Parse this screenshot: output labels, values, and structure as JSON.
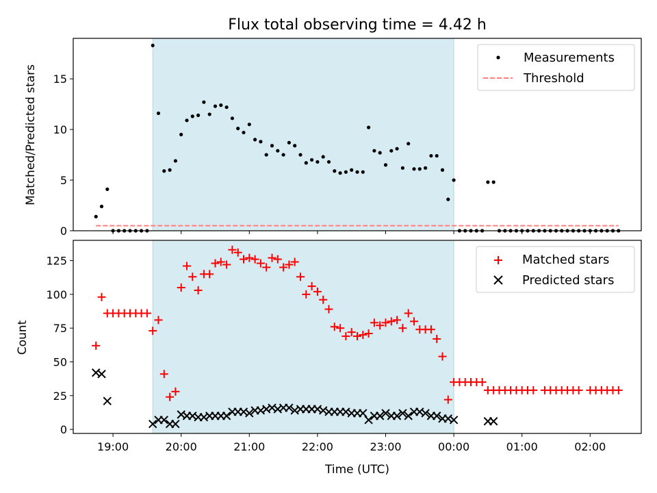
{
  "chart_data": [
    {
      "type": "scatter",
      "title": "Flux total observing time = 4.42 h",
      "xlabel": "",
      "ylabel": "Matched/Predicted stars",
      "xlim": [
        "18:25",
        "02:45"
      ],
      "ylim": [
        0,
        19
      ],
      "yticks": [
        0,
        5,
        10,
        15
      ],
      "grid": false,
      "legend_position": "top-right",
      "shaded_span": {
        "start": "19:35",
        "end": "00:00",
        "color": "#add8e6"
      },
      "series": [
        {
          "name": "Measurements",
          "color": "#000000",
          "marker": "dot",
          "points": [
            [
              "18:45",
              1.4
            ],
            [
              "18:50",
              2.4
            ],
            [
              "18:55",
              4.1
            ],
            [
              "19:00",
              0
            ],
            [
              "19:05",
              0
            ],
            [
              "19:10",
              0
            ],
            [
              "19:15",
              0
            ],
            [
              "19:20",
              0
            ],
            [
              "19:25",
              0
            ],
            [
              "19:30",
              0
            ],
            [
              "19:35",
              18.3
            ],
            [
              "19:40",
              11.6
            ],
            [
              "19:45",
              5.9
            ],
            [
              "19:50",
              6.0
            ],
            [
              "19:55",
              6.9
            ],
            [
              "20:00",
              9.5
            ],
            [
              "20:05",
              10.9
            ],
            [
              "20:10",
              11.3
            ],
            [
              "20:15",
              11.4
            ],
            [
              "20:20",
              12.7
            ],
            [
              "20:25",
              11.5
            ],
            [
              "20:30",
              12.3
            ],
            [
              "20:35",
              12.4
            ],
            [
              "20:40",
              12.2
            ],
            [
              "20:45",
              11.1
            ],
            [
              "20:50",
              10.1
            ],
            [
              "20:55",
              9.7
            ],
            [
              "21:00",
              10.5
            ],
            [
              "21:05",
              9.0
            ],
            [
              "21:10",
              8.8
            ],
            [
              "21:15",
              7.5
            ],
            [
              "21:20",
              8.4
            ],
            [
              "21:25",
              7.9
            ],
            [
              "21:30",
              7.5
            ],
            [
              "21:35",
              8.7
            ],
            [
              "21:40",
              8.4
            ],
            [
              "21:45",
              7.5
            ],
            [
              "21:50",
              6.7
            ],
            [
              "21:55",
              7.0
            ],
            [
              "22:00",
              6.8
            ],
            [
              "22:05",
              7.3
            ],
            [
              "22:10",
              6.8
            ],
            [
              "22:15",
              5.9
            ],
            [
              "22:20",
              5.7
            ],
            [
              "22:25",
              5.8
            ],
            [
              "22:30",
              6.0
            ],
            [
              "22:35",
              5.8
            ],
            [
              "22:40",
              5.8
            ],
            [
              "22:45",
              10.2
            ],
            [
              "22:50",
              7.9
            ],
            [
              "22:55",
              7.7
            ],
            [
              "23:00",
              6.5
            ],
            [
              "23:05",
              7.9
            ],
            [
              "23:10",
              8.1
            ],
            [
              "23:15",
              6.2
            ],
            [
              "23:20",
              8.6
            ],
            [
              "23:25",
              6.1
            ],
            [
              "23:30",
              6.1
            ],
            [
              "23:35",
              6.2
            ],
            [
              "23:40",
              7.4
            ],
            [
              "23:45",
              7.4
            ],
            [
              "23:50",
              6.0
            ],
            [
              "23:55",
              3.1
            ],
            [
              "00:00",
              5.0
            ],
            [
              "00:05",
              0
            ],
            [
              "00:10",
              0
            ],
            [
              "00:15",
              0
            ],
            [
              "00:20",
              0
            ],
            [
              "00:25",
              0
            ],
            [
              "00:30",
              4.8
            ],
            [
              "00:35",
              4.8
            ],
            [
              "00:40",
              0
            ],
            [
              "00:45",
              0
            ],
            [
              "00:50",
              0
            ],
            [
              "00:55",
              0
            ],
            [
              "01:00",
              0
            ],
            [
              "01:05",
              0
            ],
            [
              "01:10",
              0
            ],
            [
              "01:15",
              0
            ],
            [
              "01:20",
              0
            ],
            [
              "01:25",
              0
            ],
            [
              "01:30",
              0
            ],
            [
              "01:35",
              0
            ],
            [
              "01:40",
              0
            ],
            [
              "01:45",
              0
            ],
            [
              "01:50",
              0
            ],
            [
              "01:55",
              0
            ],
            [
              "02:00",
              0
            ],
            [
              "02:05",
              0
            ],
            [
              "02:10",
              0
            ],
            [
              "02:15",
              0
            ],
            [
              "02:20",
              0
            ],
            [
              "02:25",
              0
            ]
          ]
        },
        {
          "name": "Threshold",
          "color": "#ff7f7f",
          "style": "dashed",
          "points": [
            [
              "18:45",
              0.5
            ],
            [
              "02:25",
              0.5
            ]
          ]
        }
      ]
    },
    {
      "type": "scatter",
      "title": "",
      "xlabel": "Time (UTC)",
      "ylabel": "Count",
      "xlim": [
        "18:25",
        "02:45"
      ],
      "ylim": [
        -3,
        140
      ],
      "yticks": [
        0,
        25,
        50,
        75,
        100,
        125
      ],
      "xticks": [
        "19:00",
        "20:00",
        "21:00",
        "22:00",
        "23:00",
        "00:00",
        "01:00",
        "02:00"
      ],
      "grid": false,
      "legend_position": "top-right",
      "shaded_span": {
        "start": "19:35",
        "end": "00:00",
        "color": "#add8e6"
      },
      "series": [
        {
          "name": "Matched stars",
          "color": "#ff0000",
          "marker": "plus",
          "points": [
            [
              "18:45",
              62
            ],
            [
              "18:50",
              98
            ],
            [
              "18:55",
              86
            ],
            [
              "19:00",
              86
            ],
            [
              "19:05",
              86
            ],
            [
              "19:10",
              86
            ],
            [
              "19:15",
              86
            ],
            [
              "19:20",
              86
            ],
            [
              "19:25",
              86
            ],
            [
              "19:30",
              86
            ],
            [
              "19:35",
              73
            ],
            [
              "19:40",
              81
            ],
            [
              "19:45",
              41
            ],
            [
              "19:50",
              24
            ],
            [
              "19:55",
              28
            ],
            [
              "20:00",
              105
            ],
            [
              "20:05",
              121
            ],
            [
              "20:10",
              113
            ],
            [
              "20:15",
              103
            ],
            [
              "20:20",
              115
            ],
            [
              "20:25",
              115
            ],
            [
              "20:30",
              123
            ],
            [
              "20:35",
              124
            ],
            [
              "20:40",
              122
            ],
            [
              "20:45",
              133
            ],
            [
              "20:50",
              131
            ],
            [
              "20:55",
              126
            ],
            [
              "21:00",
              127
            ],
            [
              "21:05",
              126
            ],
            [
              "21:10",
              123
            ],
            [
              "21:15",
              120
            ],
            [
              "21:20",
              127
            ],
            [
              "21:25",
              126
            ],
            [
              "21:30",
              120
            ],
            [
              "21:35",
              122
            ],
            [
              "21:40",
              124
            ],
            [
              "21:45",
              113
            ],
            [
              "21:50",
              100
            ],
            [
              "21:55",
              106
            ],
            [
              "22:00",
              102
            ],
            [
              "22:05",
              96
            ],
            [
              "22:10",
              89
            ],
            [
              "22:15",
              76
            ],
            [
              "22:20",
              75
            ],
            [
              "22:25",
              69
            ],
            [
              "22:30",
              72
            ],
            [
              "22:35",
              69
            ],
            [
              "22:40",
              70
            ],
            [
              "22:45",
              71
            ],
            [
              "22:50",
              79
            ],
            [
              "22:55",
              77
            ],
            [
              "23:00",
              79
            ],
            [
              "23:05",
              80
            ],
            [
              "23:10",
              81
            ],
            [
              "23:15",
              75
            ],
            [
              "23:20",
              86
            ],
            [
              "23:25",
              80
            ],
            [
              "23:30",
              74
            ],
            [
              "23:35",
              74
            ],
            [
              "23:40",
              74
            ],
            [
              "23:45",
              67
            ],
            [
              "23:50",
              54
            ],
            [
              "23:55",
              22
            ],
            [
              "00:00",
              35
            ],
            [
              "00:05",
              35
            ],
            [
              "00:10",
              35
            ],
            [
              "00:15",
              35
            ],
            [
              "00:20",
              35
            ],
            [
              "00:25",
              35
            ],
            [
              "00:30",
              29
            ],
            [
              "00:35",
              29
            ],
            [
              "00:40",
              29
            ],
            [
              "00:45",
              29
            ],
            [
              "00:50",
              29
            ],
            [
              "00:55",
              29
            ],
            [
              "01:00",
              29
            ],
            [
              "01:05",
              29
            ],
            [
              "01:10",
              29
            ],
            [
              "01:20",
              29
            ],
            [
              "01:25",
              29
            ],
            [
              "01:30",
              29
            ],
            [
              "01:35",
              29
            ],
            [
              "01:40",
              29
            ],
            [
              "01:45",
              29
            ],
            [
              "01:50",
              29
            ],
            [
              "02:00",
              29
            ],
            [
              "02:05",
              29
            ],
            [
              "02:10",
              29
            ],
            [
              "02:15",
              29
            ],
            [
              "02:20",
              29
            ],
            [
              "02:25",
              29
            ]
          ]
        },
        {
          "name": "Predicted stars",
          "color": "#000000",
          "marker": "cross",
          "points": [
            [
              "18:45",
              42
            ],
            [
              "18:50",
              41
            ],
            [
              "18:55",
              21
            ],
            [
              "19:35",
              4
            ],
            [
              "19:40",
              7
            ],
            [
              "19:45",
              7
            ],
            [
              "19:50",
              4
            ],
            [
              "19:55",
              4
            ],
            [
              "20:00",
              11
            ],
            [
              "20:05",
              10
            ],
            [
              "20:10",
              10
            ],
            [
              "20:15",
              9
            ],
            [
              "20:20",
              9
            ],
            [
              "20:25",
              10
            ],
            [
              "20:30",
              10
            ],
            [
              "20:35",
              10
            ],
            [
              "20:40",
              10
            ],
            [
              "20:45",
              13
            ],
            [
              "20:50",
              13
            ],
            [
              "20:55",
              13
            ],
            [
              "21:00",
              12
            ],
            [
              "21:05",
              14
            ],
            [
              "21:10",
              14
            ],
            [
              "21:15",
              15
            ],
            [
              "21:20",
              16
            ],
            [
              "21:25",
              15
            ],
            [
              "21:30",
              16
            ],
            [
              "21:35",
              16
            ],
            [
              "21:40",
              14
            ],
            [
              "21:45",
              15
            ],
            [
              "21:50",
              15
            ],
            [
              "21:55",
              15
            ],
            [
              "22:00",
              15
            ],
            [
              "22:05",
              14
            ],
            [
              "22:10",
              13
            ],
            [
              "22:15",
              13
            ],
            [
              "22:20",
              13
            ],
            [
              "22:25",
              13
            ],
            [
              "22:30",
              12
            ],
            [
              "22:35",
              12
            ],
            [
              "22:40",
              12
            ],
            [
              "22:45",
              7
            ],
            [
              "22:50",
              10
            ],
            [
              "22:55",
              10
            ],
            [
              "23:00",
              12
            ],
            [
              "23:05",
              10
            ],
            [
              "23:10",
              10
            ],
            [
              "23:15",
              12
            ],
            [
              "23:20",
              10
            ],
            [
              "23:25",
              13
            ],
            [
              "23:30",
              13
            ],
            [
              "23:35",
              12
            ],
            [
              "23:40",
              10
            ],
            [
              "23:45",
              10
            ],
            [
              "23:50",
              8
            ],
            [
              "23:55",
              8
            ],
            [
              "00:00",
              7
            ],
            [
              "00:30",
              6
            ],
            [
              "00:35",
              6
            ]
          ]
        }
      ]
    }
  ]
}
